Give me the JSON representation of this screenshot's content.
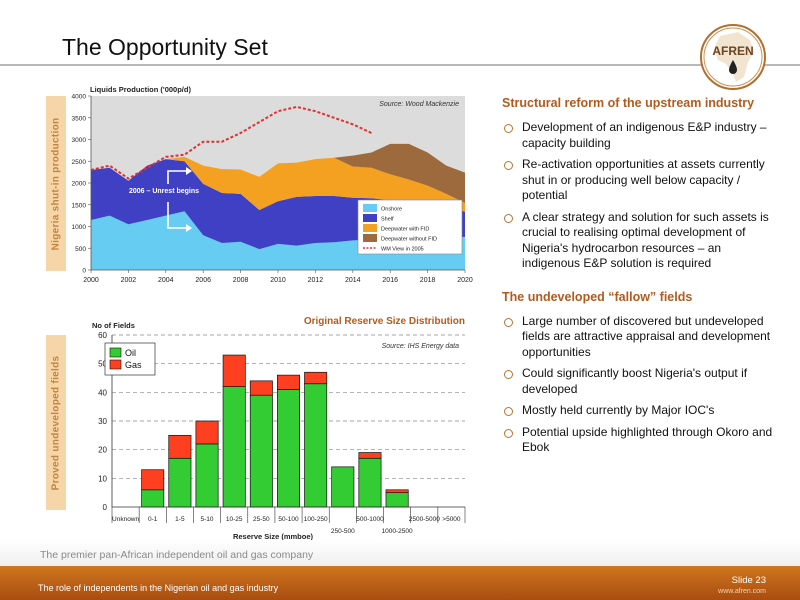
{
  "slide": {
    "title": "The Opportunity Set",
    "logo_text": "AFREN",
    "tagline": "The premier pan-African independent oil and gas company",
    "footer_text": "The role of independents in the Nigerian oil and gas industry",
    "slide_number": "Slide 23",
    "website": "www.afren.com"
  },
  "chart_data": [
    {
      "type": "area",
      "side_label": "Nigeria shut-in production",
      "ylabel": "Liquids Production ('000p/d)",
      "source": "Source: Wood Mackenzie",
      "annotation": "2006 – Unrest begins",
      "x": [
        2000,
        2001,
        2002,
        2003,
        2004,
        2005,
        2006,
        2007,
        2008,
        2009,
        2010,
        2011,
        2012,
        2013,
        2014,
        2015,
        2016,
        2017,
        2018,
        2019,
        2020
      ],
      "xticks": [
        "2000",
        "2002",
        "2004",
        "2006",
        "2008",
        "2010",
        "2012",
        "2014",
        "2016",
        "2018",
        "2020"
      ],
      "yticks": [
        "0",
        "500",
        "1000",
        "1500",
        "2000",
        "2500",
        "3000",
        "3500",
        "4000"
      ],
      "ylim": [
        0,
        4000
      ],
      "xlim": [
        2000,
        2020
      ],
      "series": [
        {
          "name": "Onshore",
          "color": "#66ccf2",
          "values": [
            1150,
            1250,
            1050,
            1150,
            1250,
            1350,
            800,
            620,
            650,
            480,
            600,
            560,
            620,
            640,
            680,
            700,
            720,
            730,
            740,
            750,
            760
          ]
        },
        {
          "name": "Shelf",
          "color": "#4040c4",
          "values": [
            1150,
            1100,
            1000,
            1250,
            1300,
            1150,
            1180,
            1150,
            1100,
            900,
            980,
            1120,
            1080,
            1060,
            980,
            950,
            880,
            850,
            800,
            700,
            580
          ]
        },
        {
          "name": "Deepwater with FID",
          "color": "#f4a020",
          "values": [
            0,
            0,
            0,
            0,
            0,
            100,
            420,
            550,
            560,
            760,
            870,
            790,
            850,
            880,
            720,
            700,
            600,
            500,
            400,
            300,
            200
          ]
        },
        {
          "name": "Deepwater without FID",
          "color": "#9c6a3c",
          "values": [
            0,
            0,
            0,
            0,
            0,
            0,
            0,
            0,
            0,
            0,
            0,
            0,
            0,
            0,
            250,
            350,
            700,
            820,
            760,
            650,
            700
          ]
        }
      ],
      "line_series": {
        "name": "WM View in 2005",
        "color": "#e03030",
        "x": [
          2000,
          2001,
          2002,
          2003,
          2004,
          2005,
          2006,
          2007,
          2008,
          2009,
          2010,
          2011,
          2012,
          2013,
          2014,
          2015
        ],
        "values": [
          2300,
          2400,
          2100,
          2350,
          2600,
          2650,
          2950,
          2950,
          3150,
          3400,
          3650,
          3750,
          3650,
          3500,
          3350,
          3150
        ]
      }
    },
    {
      "type": "bar",
      "side_label": "Proved undeveloped fields",
      "title": "Original Reserve Size Distribution",
      "ylabel": "No of Fields",
      "xlabel": "Reserve Size (mmboe)",
      "source": "Source: IHS Energy data",
      "ylim": [
        0,
        60
      ],
      "yticks": [
        "0",
        "10",
        "20",
        "30",
        "40",
        "50",
        "60"
      ],
      "categories": [
        "Unknown",
        "0-1",
        "1-5",
        "5-10",
        "10-25",
        "25-50",
        "50-100",
        "100-250",
        "250-500",
        "500-1000",
        "1000-2500",
        "2500-5000",
        ">5000"
      ],
      "series": [
        {
          "name": "Oil",
          "color": "#33cc33",
          "values": [
            0,
            6,
            17,
            22,
            42,
            39,
            41,
            43,
            14,
            17,
            5,
            0,
            0
          ]
        },
        {
          "name": "Gas",
          "color": "#ff4020",
          "values": [
            0,
            7,
            8,
            8,
            11,
            5,
            5,
            4,
            0,
            2,
            1,
            0,
            0
          ]
        }
      ]
    }
  ],
  "right_panel": {
    "section1_title": "Structural reform of the upstream industry",
    "section1_bullets": [
      "Development of an indigenous E&P industry – capacity building",
      "Re-activation opportunities at assets currently shut in or producing well below capacity / potential",
      "A clear strategy and solution for such assets is crucial to realising optimal development of Nigeria's hydrocarbon resources – an indigenous E&P solution is required"
    ],
    "section2_title": "The undeveloped “fallow” fields",
    "section2_bullets": [
      "Large number of discovered but undeveloped fields are attractive appraisal and development opportunities",
      "Could significantly boost Nigeria's output if developed",
      "Mostly held currently by Major IOC's",
      "Potential upside highlighted through Okoro and Ebok"
    ]
  }
}
